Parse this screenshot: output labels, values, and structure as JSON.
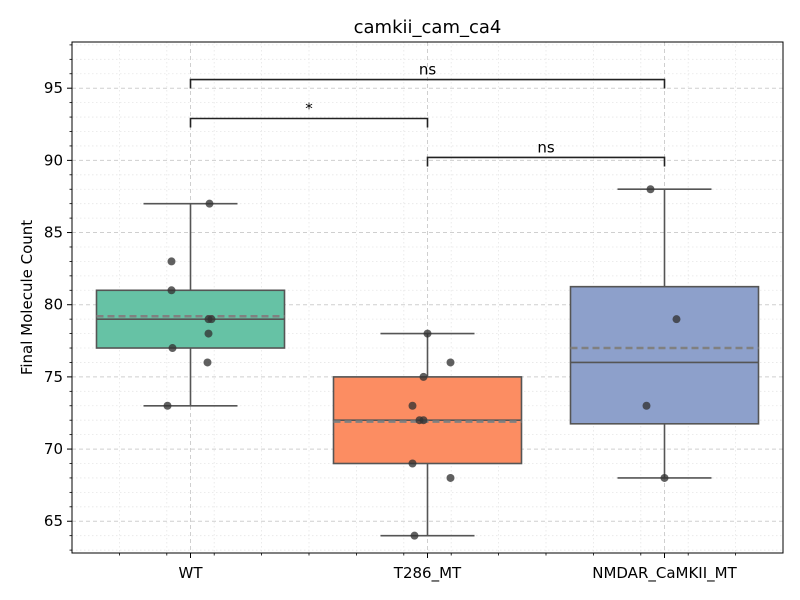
{
  "chart_data": {
    "type": "box",
    "title": "camkii_cam_ca4",
    "xlabel": "",
    "ylabel": "Final Molecule Count",
    "ylim": [
      62.8,
      98.2
    ],
    "yticks": [
      65,
      70,
      75,
      80,
      85,
      90,
      95
    ],
    "grid": true,
    "colors": {
      "WT": "#66c2a5",
      "T286_MT": "#fc8d62",
      "NMDAR_CaMKII_MT": "#8da0cb",
      "box_edge": "#555555",
      "mean_line": "#808080",
      "points": "#333333"
    },
    "categories": [
      "WT",
      "T286_MT",
      "NMDAR_CaMKII_MT"
    ],
    "boxes": [
      {
        "name": "WT",
        "whisker_low": 73,
        "q1": 77,
        "median": 79,
        "mean": 79.2,
        "q3": 81,
        "whisker_high": 87,
        "points": [
          73,
          76,
          77,
          78,
          79,
          79,
          81,
          83,
          87
        ]
      },
      {
        "name": "T286_MT",
        "whisker_low": 64,
        "q1": 69,
        "median": 72,
        "mean": 71.9,
        "q3": 75,
        "whisker_high": 78,
        "points": [
          64,
          68,
          69,
          72,
          72,
          73,
          75,
          76,
          78
        ]
      },
      {
        "name": "NMDAR_CaMKII_MT",
        "whisker_low": 68,
        "q1": 71.75,
        "median": 76,
        "mean": 77,
        "q3": 81.25,
        "whisker_high": 88,
        "points": [
          68,
          73,
          79,
          88
        ]
      }
    ],
    "significance": [
      {
        "from": "WT",
        "to": "NMDAR_CaMKII_MT",
        "label": "ns",
        "y": 95.6
      },
      {
        "from": "WT",
        "to": "T286_MT",
        "label": "*",
        "y": 92.9
      },
      {
        "from": "T286_MT",
        "to": "NMDAR_CaMKII_MT",
        "label": "ns",
        "y": 90.2
      }
    ]
  }
}
